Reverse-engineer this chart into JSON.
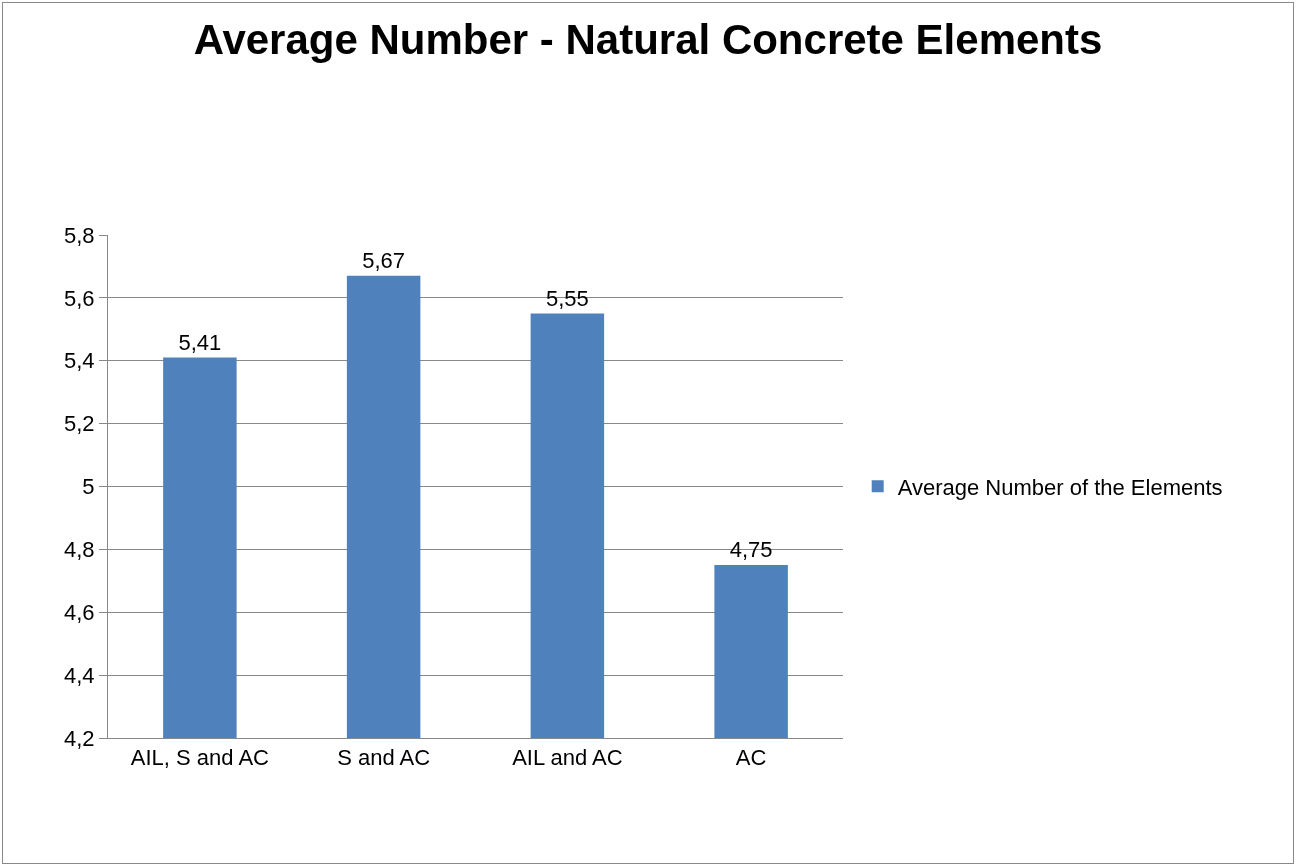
{
  "chart_data": {
    "type": "bar",
    "title": "Average Number - Natural Concrete Elements",
    "categories": [
      "AIL, S and AC",
      "S and AC",
      "AIL and AC",
      "AC"
    ],
    "series": [
      {
        "name": "Average Number of the Elements",
        "color": "#4f81bd",
        "values": [
          5.41,
          5.67,
          5.55,
          4.75
        ],
        "value_labels": [
          "5,41",
          "5,67",
          "5,55",
          "4,75"
        ]
      }
    ],
    "ylim": [
      4.2,
      5.8
    ],
    "yticks": [
      {
        "value": 4.2,
        "label": "4,2"
      },
      {
        "value": 4.4,
        "label": "4,4"
      },
      {
        "value": 4.6,
        "label": "4,6"
      },
      {
        "value": 4.8,
        "label": "4,8"
      },
      5,
      {
        "value": 5.2,
        "label": "5,2"
      },
      {
        "value": 5.4,
        "label": "5,4"
      },
      {
        "value": 5.6,
        "label": "5,6"
      },
      {
        "value": 5.8,
        "label": "5,8"
      }
    ],
    "grid": "y",
    "legend": "right"
  }
}
